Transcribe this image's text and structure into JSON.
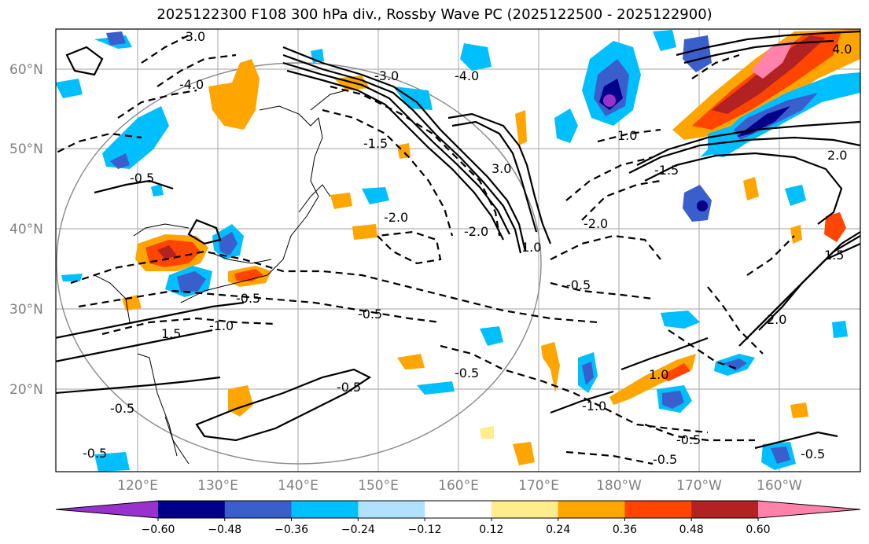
{
  "title": "2025122300 F108 300 hPa div., Rossby Wave PC (2025122500 - 2025122900)",
  "lat_labels": [
    "60°N",
    "50°N",
    "40°N",
    "30°N",
    "20°N"
  ],
  "lon_labels": [
    "120°E",
    "130°E",
    "140°E",
    "150°E",
    "160°E",
    "170°E",
    "180°W",
    "170°W",
    "160°W"
  ],
  "colorbar": {
    "ticks": [
      "−0.60",
      "−0.48",
      "−0.36",
      "−0.24",
      "−0.12",
      "0.12",
      "0.24",
      "0.36",
      "0.48",
      "0.60"
    ],
    "colors": [
      "#9932cc",
      "#00008b",
      "#3a5fcd",
      "#00bfff",
      "#b0e2ff",
      "#ffffff",
      "#ffec8b",
      "#ffa500",
      "#ff4500",
      "#b22222",
      "#ff82ab"
    ]
  },
  "contour_labels": [
    "-3.0",
    "-4.0",
    "-3.0",
    "-4.0",
    "-0.5",
    "-1.5",
    "-2.0",
    "-1.0",
    "-2.0",
    "-2.0",
    "-0.5",
    "-0.5",
    "-0.5",
    "-0.5",
    "-0.5",
    "-0.5",
    "-1.0",
    "-1.5",
    "-0.5",
    "-0.5",
    "-0.5",
    "-0.5",
    "1.0",
    "1.5",
    "2.0",
    "4.0",
    "1.0",
    "3.0",
    "2.0",
    "1.0",
    "1.5"
  ]
}
